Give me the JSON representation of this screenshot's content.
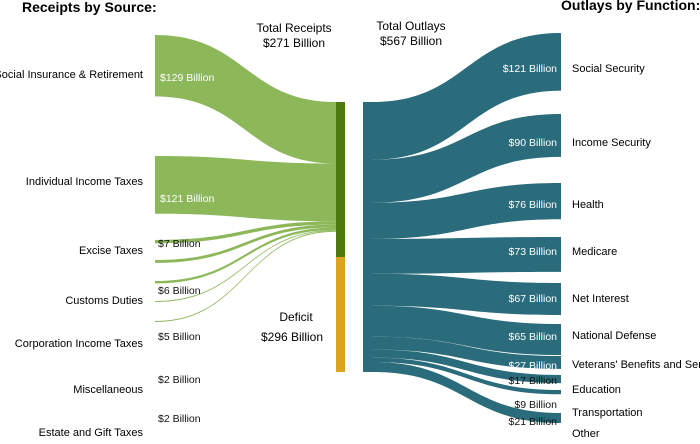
{
  "headers": {
    "receipts": "Receipts by Source:",
    "outlays": "Outlays by Function:"
  },
  "totals": {
    "receipts_title": "Total Receipts",
    "receipts_value": "$271 Billion",
    "outlays_title": "Total Outlays",
    "outlays_value": "$567 Billion",
    "deficit_title": "Deficit",
    "deficit_value": "$296 Billion"
  },
  "colors": {
    "receipts_flow": "#8db85a",
    "receipts_bar": "#4d7a0f",
    "deficit": "#dca41e",
    "outlays": "#2a6c7b"
  },
  "receipts": [
    {
      "name": "Social Insurance & Retirement",
      "value_label": "$129 Billion",
      "value": 129
    },
    {
      "name": "Individual Income Taxes",
      "value_label": "$121 Billion",
      "value": 121
    },
    {
      "name": "Excise Taxes",
      "value_label": "$7 Billion",
      "value": 7
    },
    {
      "name": "Customs Duties",
      "value_label": "$6 Billion",
      "value": 6
    },
    {
      "name": "Corporation Income Taxes",
      "value_label": "$5 Billion",
      "value": 5
    },
    {
      "name": "Miscellaneous",
      "value_label": "$2 Billion",
      "value": 2
    },
    {
      "name": "Estate and Gift Taxes",
      "value_label": "$2 Billion",
      "value": 2
    }
  ],
  "outlays": [
    {
      "name": "Social Security",
      "value_label": "$121 Billion",
      "value": 121
    },
    {
      "name": "Income Security",
      "value_label": "$90 Billion",
      "value": 90
    },
    {
      "name": "Health",
      "value_label": "$76 Billion",
      "value": 76
    },
    {
      "name": "Medicare",
      "value_label": "$73 Billion",
      "value": 73
    },
    {
      "name": "Net Interest",
      "value_label": "$67 Billion",
      "value": 67
    },
    {
      "name": "National Defense",
      "value_label": "$65 Billion",
      "value": 65
    },
    {
      "name": "Veterans' Benefits and Services",
      "value_label": "$27 Billion",
      "value": 27
    },
    {
      "name": "Education",
      "value_label": "$17 Billion",
      "value": 17
    },
    {
      "name": "Transportation",
      "value_label": "$9 Billion",
      "value": 9
    },
    {
      "name": "Other",
      "value_label": "$21 Billion",
      "value": 21
    }
  ]
}
